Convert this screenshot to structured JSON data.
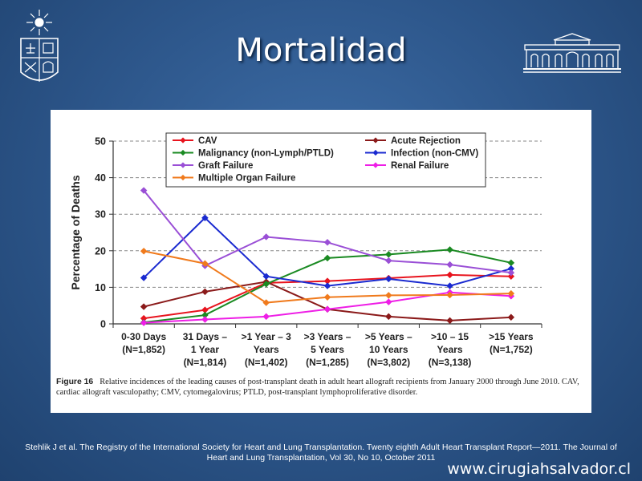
{
  "slide": {
    "title": "Mortalidad",
    "citation_line1": "Stehlik J et al. The Registry of the International Society for Heart and Lung Transplantation. Twenty eighth Adult Heart Transplant Report—2011. The Journal of",
    "citation_line2": "Heart and Lung Transplantation, Vol 30, No 10, October 2011",
    "website": "www.cirugiahsalvador.cl"
  },
  "figure": {
    "label": "Figure 16",
    "caption": "Relative incidences of the leading causes of post-transplant death in adult heart allograft recipients from January 2000 through June 2010. CAV, cardiac allograft vasculopathy; CMV, cytomegalovirus; PTLD, post-transplant lymphoproliferative disorder."
  },
  "chart_data": {
    "type": "line",
    "ylabel": "Percentage of Deaths",
    "ylim": [
      0,
      50
    ],
    "yticks": [
      0,
      10,
      20,
      30,
      40,
      50
    ],
    "grid": "horizontal dashed",
    "legend_position": "top",
    "categories": [
      [
        "0-30 Days",
        "(N=1,852)"
      ],
      [
        "31 Days –",
        "1 Year",
        "(N=1,814)"
      ],
      [
        ">1 Year – 3",
        "Years",
        "(N=1,402)"
      ],
      [
        ">3 Years –",
        "5 Years",
        "(N=1,285)"
      ],
      [
        ">5 Years –",
        "10 Years",
        "(N=3,802)"
      ],
      [
        ">10 – 15",
        "Years",
        "(N=3,138)"
      ],
      [
        ">15 Years",
        "(N=1,752)"
      ]
    ],
    "series": [
      {
        "name": "CAV",
        "color": "#e8141e",
        "values": [
          1.5,
          3.8,
          11.2,
          11.7,
          12.5,
          13.4,
          13.0
        ]
      },
      {
        "name": "Acute Rejection",
        "color": "#8b1a1a",
        "values": [
          4.7,
          8.8,
          11.5,
          4.0,
          2.0,
          0.9,
          1.8
        ]
      },
      {
        "name": "Malignancy (non-Lymph/PTLD)",
        "color": "#1a8a22",
        "values": [
          0.4,
          2.4,
          10.9,
          18.0,
          19.0,
          20.3,
          16.7
        ]
      },
      {
        "name": "Infection (non-CMV)",
        "color": "#1a2ad0",
        "values": [
          12.6,
          29.0,
          13.0,
          10.4,
          12.3,
          10.4,
          15.1
        ]
      },
      {
        "name": "Graft Failure",
        "color": "#9a4fd6",
        "values": [
          36.5,
          15.9,
          23.8,
          22.3,
          17.3,
          16.2,
          14.0
        ]
      },
      {
        "name": "Renal Failure",
        "color": "#ee1ee6",
        "values": [
          0.3,
          1.2,
          2.0,
          4.0,
          6.0,
          8.6,
          7.6
        ]
      },
      {
        "name": "Multiple Organ Failure",
        "color": "#f07a1c",
        "values": [
          19.9,
          16.5,
          5.8,
          7.3,
          7.8,
          7.9,
          8.3
        ]
      }
    ]
  }
}
